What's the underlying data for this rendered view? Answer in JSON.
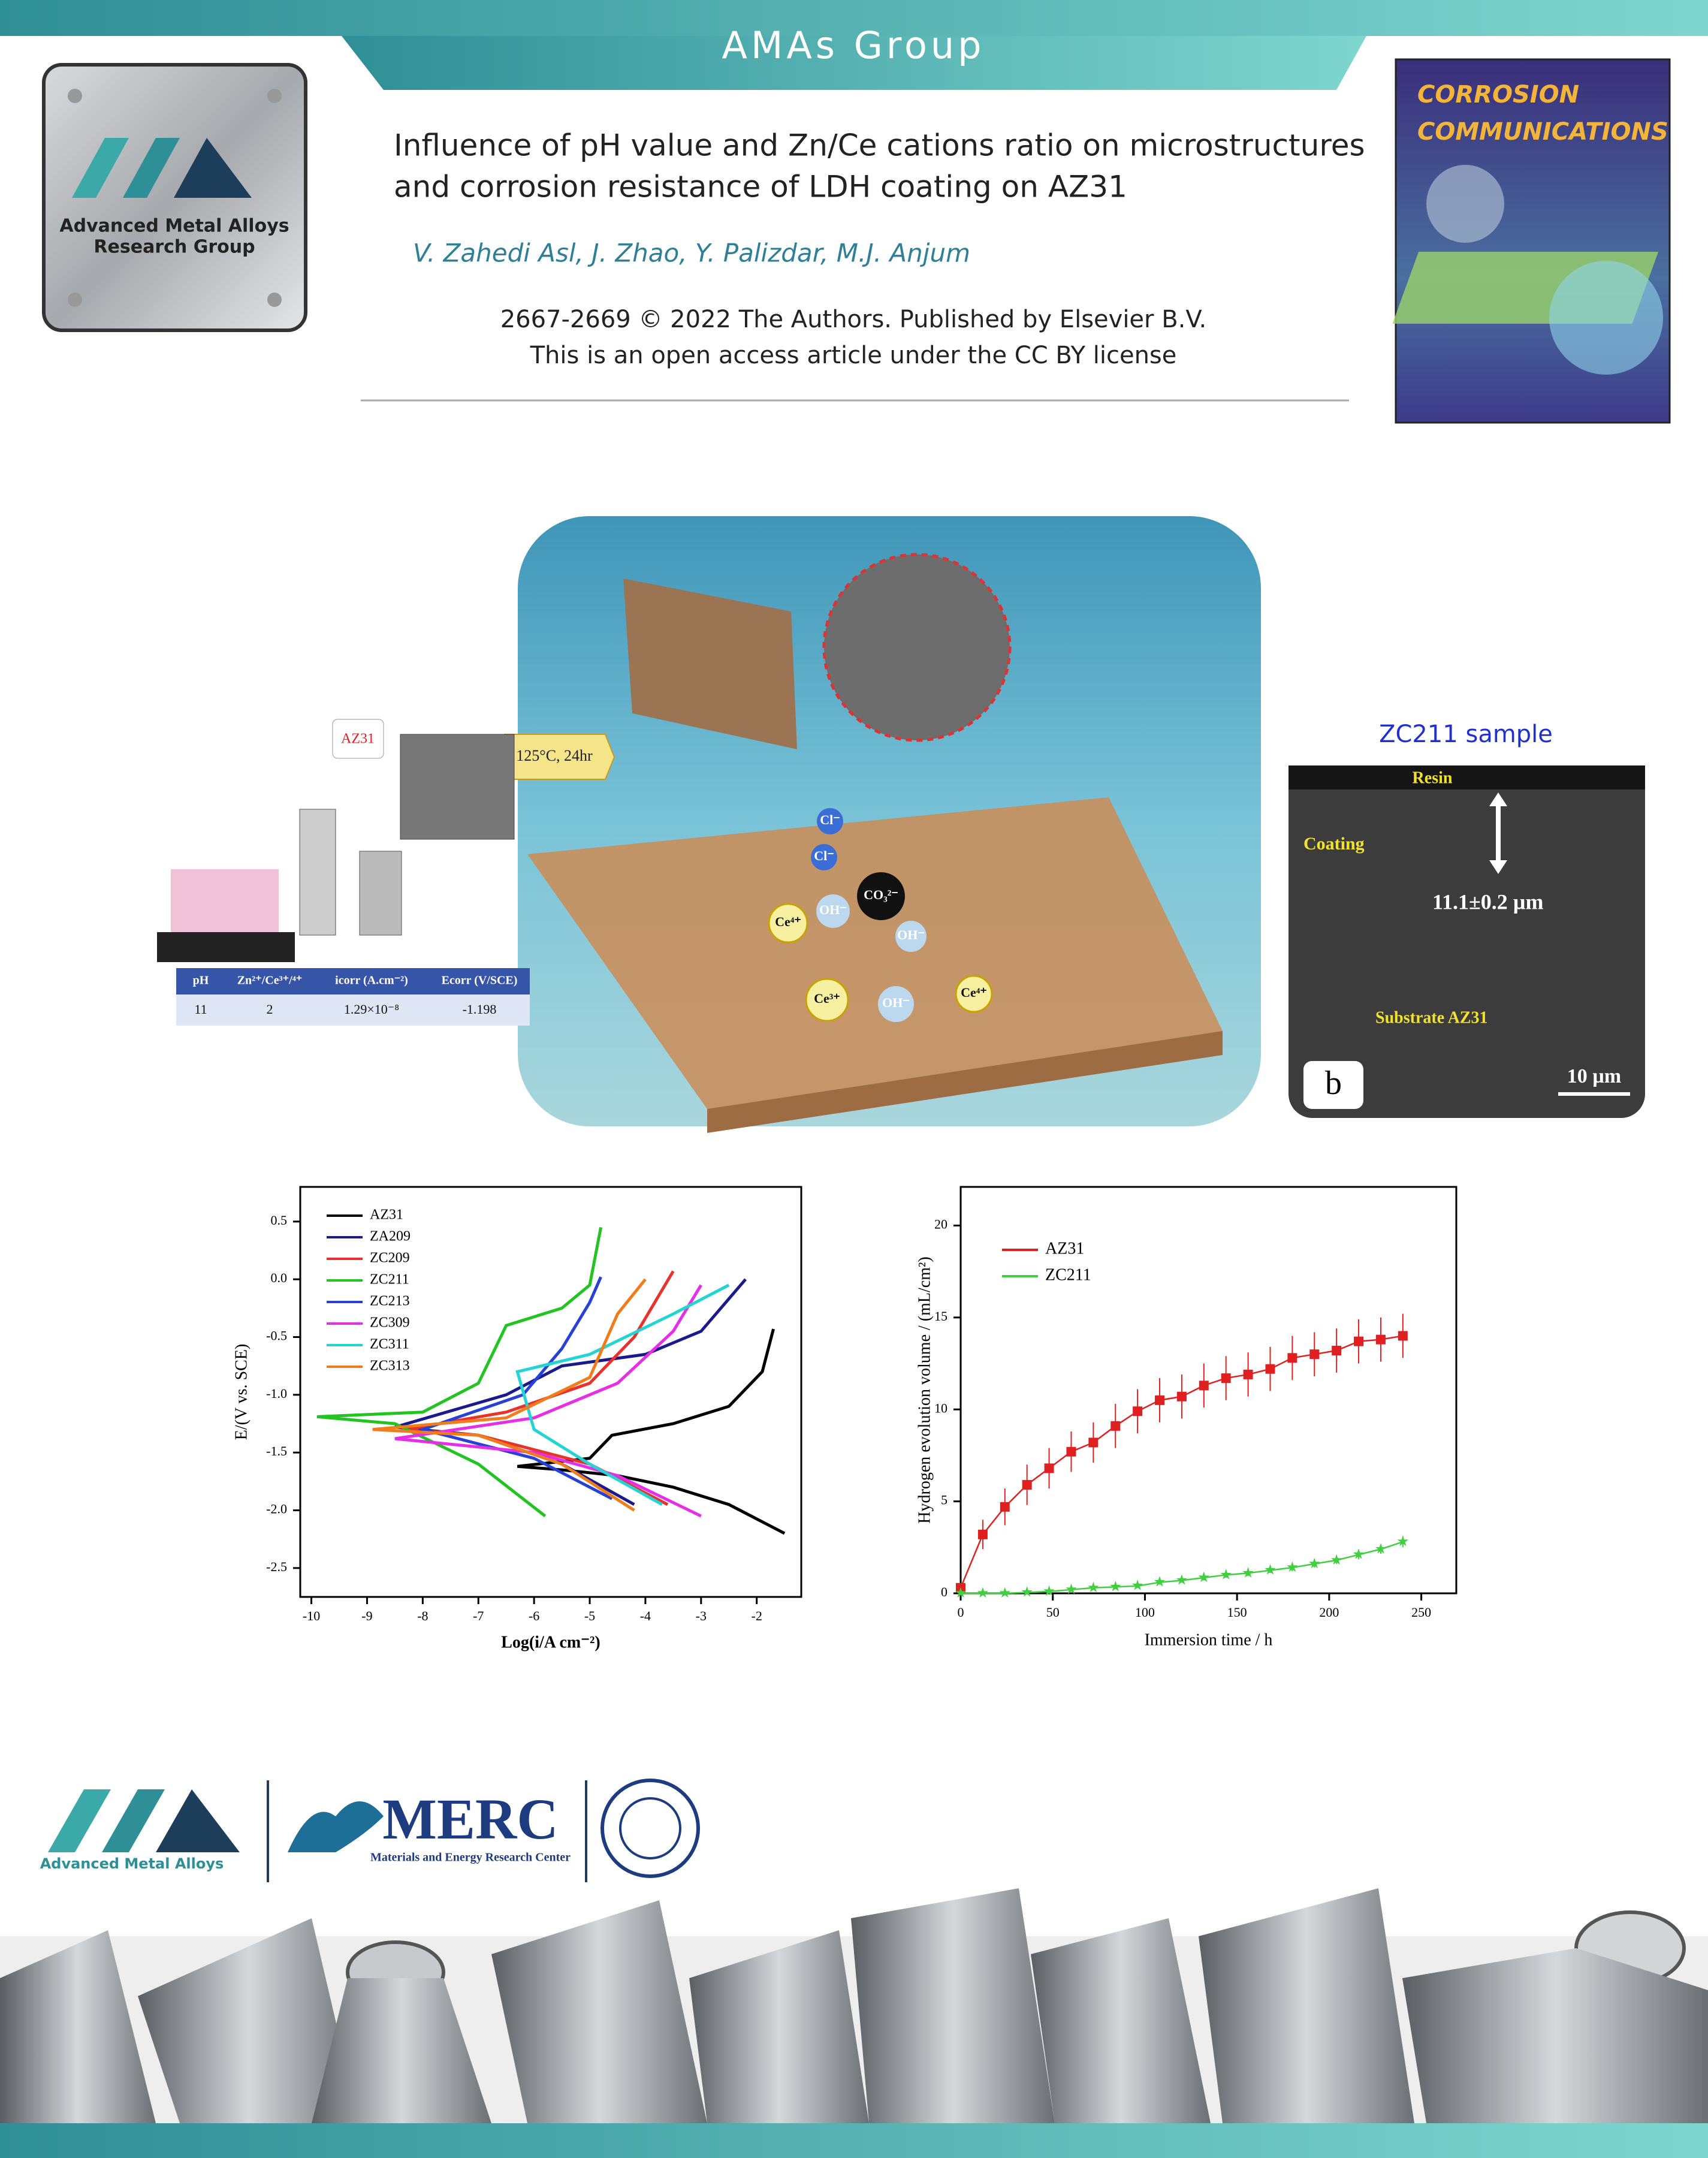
{
  "header": {
    "banner": "AMAs Group",
    "logo_line1": "Advanced Metal Alloys",
    "logo_line2": "Research Group"
  },
  "article": {
    "title_line1": "Influence of pH value and Zn/Ce cations ratio on microstructures",
    "title_line2": "and corrosion resistance of LDH coating on AZ31",
    "authors": "V. Zahedi Asl, J. Zhao, Y. Palizdar, M.J. Anjum",
    "citation_line1": "2667-2669 © 2022 The Authors. Published by Elsevier B.V.",
    "citation_line2": "This is an open access article under the CC BY license"
  },
  "journal_cover": {
    "title_line1": "CORROSION",
    "title_line2": "COMMUNICATIONS"
  },
  "graphical_abstract": {
    "vessel_label": "AZ31",
    "oven_label": "125°C, 24hr",
    "ions": [
      "Cl⁻",
      "Cl⁻",
      "CO₃²⁻",
      "Ce⁴⁺",
      "OH⁻",
      "OH⁻",
      "Ce³⁺",
      "OH⁻",
      "Ce⁴⁺"
    ],
    "table": {
      "headers": [
        "pH",
        "Zn²⁺/Ce³⁺/⁴⁺",
        "icorr (A.cm⁻²)",
        "Ecorr (V/SCE)"
      ],
      "rows": [
        [
          "11",
          "2",
          "1.29×10⁻⁸",
          "-1.198"
        ]
      ]
    }
  },
  "sem": {
    "caption": "ZC211 sample",
    "resin": "Resin",
    "coating": "Coating",
    "thickness": "11.1±0.2 µm",
    "substrate": "Substrate AZ31",
    "scale_bar": "10 µm",
    "panel": "b"
  },
  "chart_data": [
    {
      "type": "line",
      "xlabel": "Log(i/A cm⁻²)",
      "ylabel": "E/(V vs. SCE)",
      "xlim": [
        -10.2,
        -1.2
      ],
      "ylim": [
        -2.75,
        0.8
      ],
      "xticks": [
        -10,
        -9,
        -8,
        -7,
        -6,
        -5,
        -4,
        -3,
        -2
      ],
      "yticks": [
        0.5,
        {
          "value": 0,
          "label": "0.0"
        },
        -0.5,
        {
          "value": -1,
          "label": "-1.0"
        },
        -1.5,
        {
          "value": -2,
          "label": "-2.0"
        },
        -2.5
      ],
      "series": [
        {
          "name": "AZ31",
          "color": "#000000",
          "x": [
            -1.5,
            -2.5,
            -3.5,
            -4.5,
            -5.5,
            -6.3,
            -5.0,
            -4.6,
            -3.5,
            -2.5,
            -1.9,
            -1.7
          ],
          "values": [
            -2.2,
            -1.95,
            -1.8,
            -1.7,
            -1.65,
            -1.62,
            -1.55,
            -1.35,
            -1.25,
            -1.1,
            -0.8,
            -0.43
          ]
        },
        {
          "name": "ZA209",
          "color": "#1a1a8c",
          "x": [
            -4.2,
            -5.5,
            -7,
            -8.5,
            -6.5,
            -5.5,
            -4.0,
            -3.0,
            -2.2
          ],
          "values": [
            -1.95,
            -1.6,
            -1.35,
            -1.28,
            -1.0,
            -0.75,
            -0.65,
            -0.45,
            0.0
          ]
        },
        {
          "name": "ZC209",
          "color": "#e8322b",
          "x": [
            -3.6,
            -5,
            -7,
            -8.3,
            -6.5,
            -5,
            -4.2,
            -3.5
          ],
          "values": [
            -1.95,
            -1.6,
            -1.35,
            -1.3,
            -1.15,
            -0.9,
            -0.5,
            0.07
          ]
        },
        {
          "name": "ZC211",
          "color": "#22c422",
          "x": [
            -5.8,
            -7,
            -8.5,
            -9.9,
            -8,
            -7,
            -6.5,
            -5.5,
            -5,
            -4.8
          ],
          "values": [
            -2.05,
            -1.6,
            -1.25,
            -1.19,
            -1.15,
            -0.9,
            -0.4,
            -0.25,
            -0.05,
            0.45
          ]
        },
        {
          "name": "ZC213",
          "color": "#2741d6",
          "x": [
            -4.6,
            -6,
            -8,
            -6.2,
            -5.5,
            -5,
            -4.8
          ],
          "values": [
            -1.9,
            -1.55,
            -1.3,
            -1.0,
            -0.6,
            -0.2,
            0.02
          ]
        },
        {
          "name": "ZC309",
          "color": "#e62ee6",
          "x": [
            -3.0,
            -4.5,
            -6,
            -8.5,
            -6,
            -4.5,
            -3.5,
            -3
          ],
          "values": [
            -2.05,
            -1.7,
            -1.5,
            -1.38,
            -1.2,
            -0.9,
            -0.45,
            -0.05
          ]
        },
        {
          "name": "ZC311",
          "color": "#22d4d4",
          "x": [
            -3.7,
            -5,
            -6,
            -6.3,
            -5,
            -3.5,
            -2.5
          ],
          "values": [
            -1.95,
            -1.6,
            -1.3,
            -0.8,
            -0.65,
            -0.3,
            -0.05
          ]
        },
        {
          "name": "ZC313",
          "color": "#f07c1c",
          "x": [
            -4.2,
            -5.5,
            -7,
            -8.9,
            -6.5,
            -5,
            -4.5,
            -4
          ],
          "values": [
            -2.0,
            -1.6,
            -1.35,
            -1.3,
            -1.2,
            -0.85,
            -0.3,
            0.0
          ]
        }
      ]
    },
    {
      "type": "errorline",
      "xlabel": "Immersion time / h",
      "ylabel": "Hydrogen evolution volume / (mL/cm²)",
      "xlim": [
        0,
        269
      ],
      "ylim": [
        0,
        22.1
      ],
      "xticks": [
        0,
        50,
        100,
        150,
        200,
        250
      ],
      "yticks": [
        0,
        5,
        10,
        15,
        20
      ],
      "series": [
        {
          "name": "AZ31",
          "color": "#e02020",
          "marker": "square",
          "x": [
            0,
            12,
            24,
            36,
            48,
            60,
            72,
            84,
            96,
            108,
            120,
            132,
            144,
            156,
            168,
            180,
            192,
            204,
            216,
            228,
            240
          ],
          "values": [
            0.3,
            3.2,
            4.7,
            5.9,
            6.8,
            7.7,
            8.2,
            9.1,
            9.9,
            10.5,
            10.7,
            11.3,
            11.7,
            11.9,
            12.2,
            12.8,
            13.0,
            13.2,
            13.7,
            13.8,
            14.0
          ],
          "errors": [
            0,
            0.8,
            1.0,
            1.1,
            1.1,
            1.1,
            1.1,
            1.2,
            1.2,
            1.2,
            1.2,
            1.2,
            1.2,
            1.2,
            1.2,
            1.2,
            1.2,
            1.2,
            1.2,
            1.2,
            1.2
          ]
        },
        {
          "name": "ZC211",
          "color": "#3fcf3f",
          "marker": "star",
          "x": [
            0,
            12,
            24,
            36,
            48,
            60,
            72,
            84,
            96,
            108,
            120,
            132,
            144,
            156,
            168,
            180,
            192,
            204,
            216,
            228,
            240
          ],
          "values": [
            0,
            0,
            0,
            0.05,
            0.1,
            0.2,
            0.3,
            0.35,
            0.4,
            0.6,
            0.7,
            0.85,
            1.0,
            1.1,
            1.25,
            1.4,
            1.6,
            1.8,
            2.1,
            2.4,
            2.8
          ],
          "errors": [
            0,
            0.05,
            0.05,
            0.05,
            0.05,
            0.1,
            0.1,
            0.1,
            0.1,
            0.1,
            0.1,
            0.15,
            0.15,
            0.15,
            0.15,
            0.2,
            0.2,
            0.2,
            0.25,
            0.25,
            0.3
          ]
        }
      ]
    }
  ],
  "footer": {
    "logo_text": "Advanced Metal Alloys",
    "merc": "MERC",
    "merc_sub": "Materials and Energy Research Center"
  }
}
